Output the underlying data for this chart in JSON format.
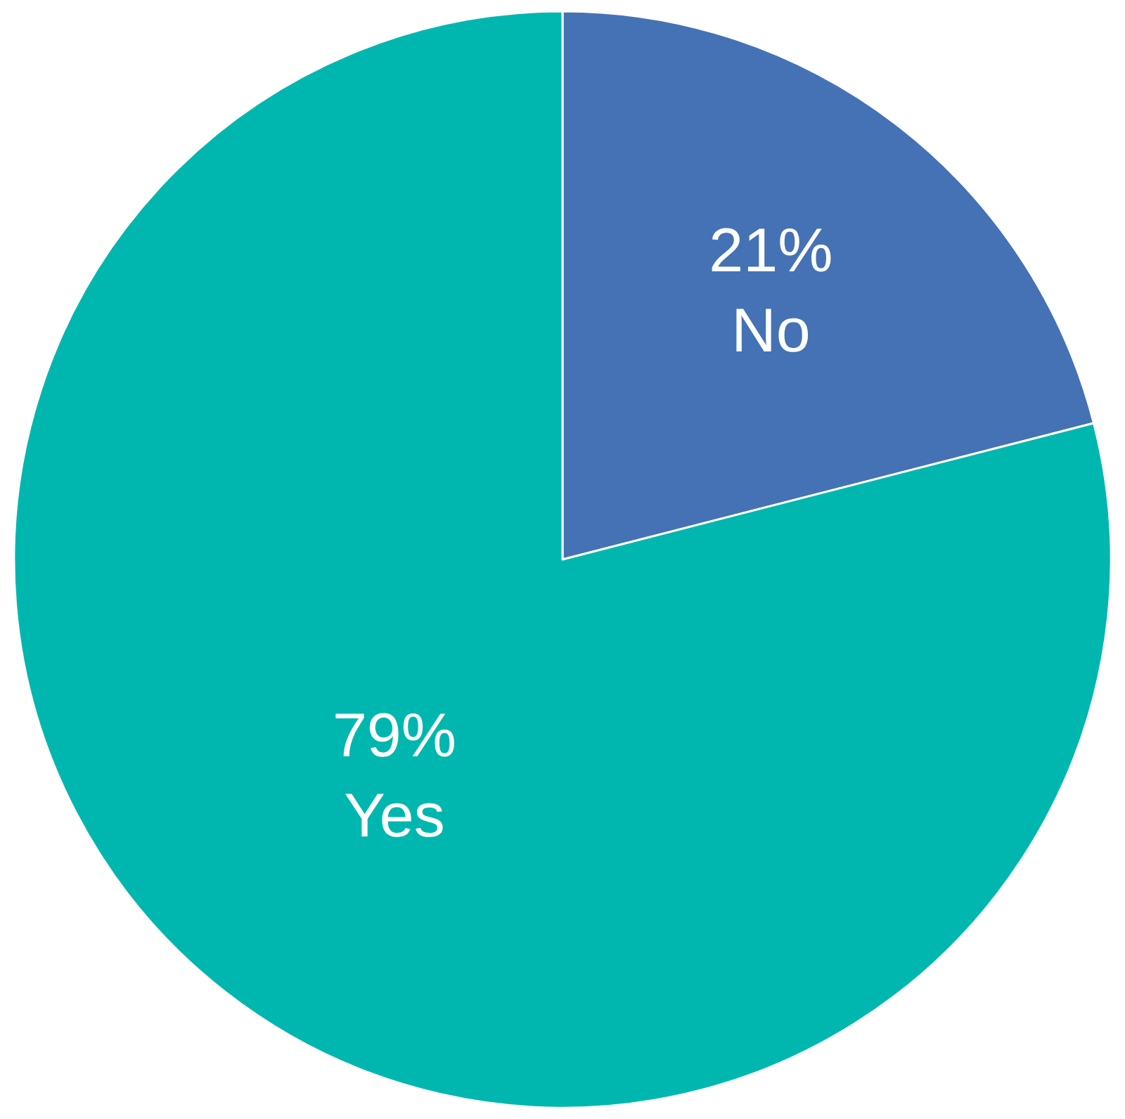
{
  "chart_data": {
    "type": "pie",
    "categories": [
      "No",
      "Yes"
    ],
    "values": [
      21,
      79
    ],
    "value_labels": [
      "21%",
      "79%"
    ],
    "colors": [
      "#4472b4",
      "#00b7b0"
    ],
    "legend": false
  }
}
